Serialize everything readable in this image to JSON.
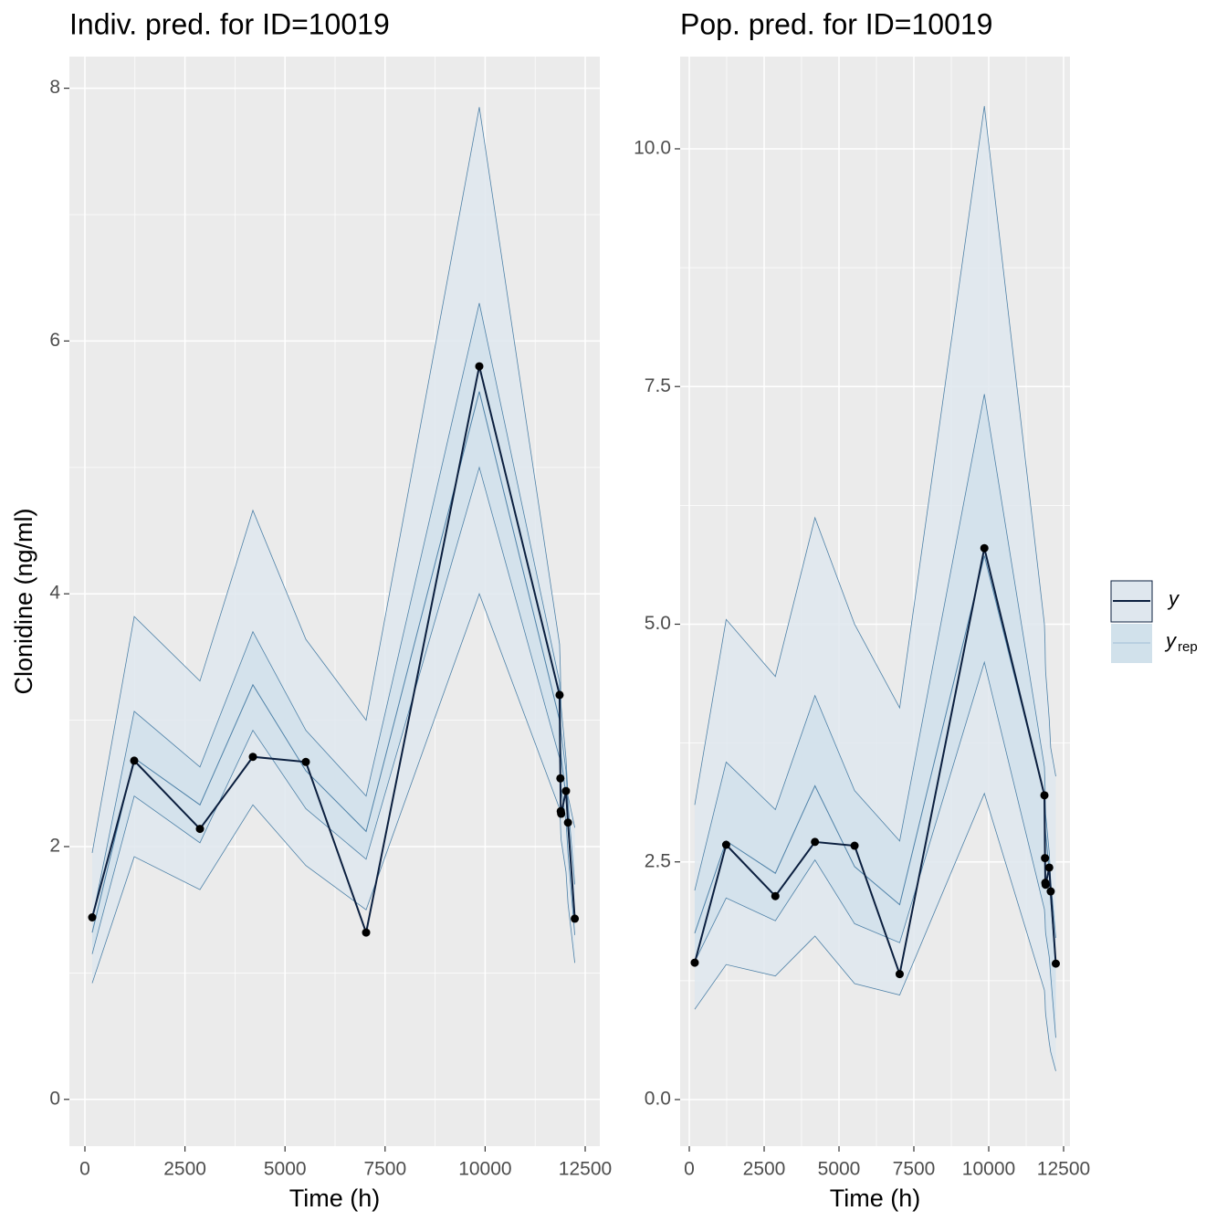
{
  "chart_data": [
    {
      "type": "line",
      "title": "Indiv. pred. for ID=10019",
      "xlabel": "Time (h)",
      "ylabel": "Clonidine (ng/ml)",
      "x": [
        182,
        1232,
        2874,
        4197,
        5520,
        7026,
        9854,
        11860,
        11880,
        11890,
        11900,
        12020,
        12070,
        12240
      ],
      "observed": [
        1.44,
        2.68,
        2.14,
        2.71,
        2.67,
        1.32,
        5.8,
        3.2,
        2.54,
        2.28,
        2.26,
        2.44,
        2.19,
        1.43
      ],
      "median": [
        1.32,
        2.7,
        2.33,
        3.28,
        2.6,
        2.12,
        5.6,
        3.0,
        2.85,
        2.75,
        2.7,
        2.4,
        2.15,
        1.4
      ],
      "bands": [
        {
          "lower": [
            0.92,
            1.92,
            1.66,
            2.33,
            1.85,
            1.5,
            4.0,
            2.3,
            2.2,
            2.1,
            2.05,
            1.8,
            1.55,
            1.08
          ],
          "upper": [
            1.95,
            3.82,
            3.31,
            4.66,
            3.64,
            3.0,
            7.85,
            3.6,
            3.4,
            3.2,
            3.1,
            2.7,
            2.4,
            2.15
          ],
          "color": "#dfe7ee"
        },
        {
          "lower": [
            1.15,
            2.4,
            2.03,
            2.92,
            2.3,
            1.9,
            5.0,
            2.7,
            2.6,
            2.5,
            2.45,
            2.2,
            1.95,
            1.3
          ],
          "upper": [
            1.42,
            3.07,
            2.63,
            3.7,
            2.92,
            2.4,
            6.3,
            3.3,
            3.1,
            2.95,
            2.9,
            2.6,
            2.35,
            1.7
          ],
          "color": "#d1e1eb"
        }
      ],
      "xlim": [
        -388,
        12865
      ],
      "ylim": [
        -0.37,
        8.25
      ],
      "xticks": [
        0,
        2500,
        5000,
        7500,
        10000,
        12500
      ],
      "yticks": [
        0,
        2,
        4,
        6,
        8
      ]
    },
    {
      "type": "line",
      "title": "Pop. pred. for ID=10019",
      "xlabel": "Time (h)",
      "x": [
        182,
        1232,
        2874,
        4197,
        5520,
        7026,
        9854,
        11860,
        11880,
        11890,
        11900,
        12020,
        12070,
        12240
      ],
      "observed": [
        1.44,
        2.68,
        2.14,
        2.71,
        2.67,
        1.32,
        5.8,
        3.2,
        2.54,
        2.28,
        2.26,
        2.44,
        2.19,
        1.43
      ],
      "median": [
        1.75,
        2.72,
        2.38,
        3.3,
        2.45,
        2.05,
        5.72,
        3.2,
        3.0,
        2.85,
        2.8,
        2.4,
        2.1,
        1.4
      ],
      "bands": [
        {
          "lower": [
            0.95,
            1.42,
            1.3,
            1.72,
            1.22,
            1.1,
            3.22,
            1.15,
            1.05,
            0.95,
            0.9,
            0.6,
            0.5,
            0.3
          ],
          "upper": [
            3.1,
            5.05,
            4.45,
            6.12,
            5.0,
            4.12,
            10.45,
            5.0,
            4.8,
            4.6,
            4.5,
            4.0,
            3.7,
            3.4
          ],
          "color": "#dfe7ee"
        },
        {
          "lower": [
            1.45,
            2.12,
            1.88,
            2.52,
            1.85,
            1.65,
            4.6,
            2.0,
            1.9,
            1.8,
            1.75,
            1.5,
            1.3,
            0.65
          ],
          "upper": [
            2.2,
            3.55,
            3.05,
            4.25,
            3.25,
            2.72,
            7.42,
            3.5,
            3.3,
            3.1,
            3.0,
            2.6,
            2.3,
            1.7
          ],
          "color": "#d1e1eb"
        }
      ],
      "xlim": [
        -305,
        12713
      ],
      "ylim": [
        -0.49,
        10.97
      ],
      "xticks": [
        0,
        2500,
        5000,
        7500,
        10000,
        12500
      ],
      "yticks": [
        {
          "value": 0,
          "label": "0.0"
        },
        2.5,
        {
          "value": 5,
          "label": "5.0"
        },
        7.5,
        {
          "value": 10,
          "label": "10.0"
        }
      ]
    }
  ],
  "legend": [
    {
      "name": "y"
    },
    {
      "name": "y",
      "subscript": "rep"
    }
  ],
  "colors": {
    "observed": "#0b1f3f",
    "edge": "#4f82a8",
    "point": "#000000",
    "panel": "#ebebeb"
  }
}
